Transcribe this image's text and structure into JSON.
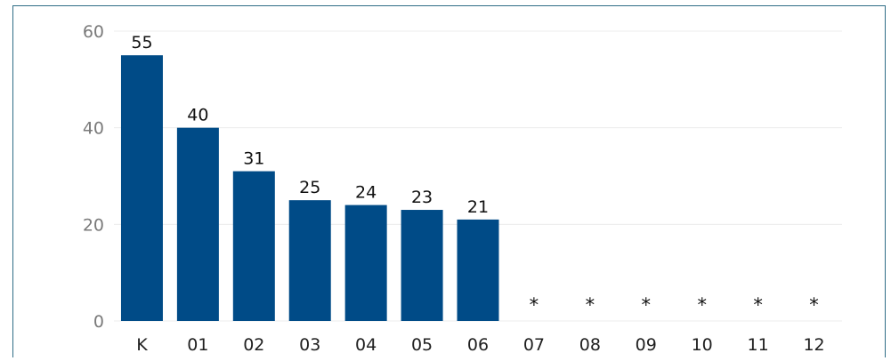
{
  "chart_data": {
    "type": "bar",
    "categories": [
      "K",
      "01",
      "02",
      "03",
      "04",
      "05",
      "06",
      "07",
      "08",
      "09",
      "10",
      "11",
      "12"
    ],
    "values": [
      55,
      40,
      31,
      25,
      24,
      23,
      21,
      null,
      null,
      null,
      null,
      null,
      null
    ],
    "data_labels": [
      "55",
      "40",
      "31",
      "25",
      "24",
      "23",
      "21",
      "*",
      "*",
      "*",
      "*",
      "*",
      "*"
    ],
    "y_ticks": [
      "0",
      "20",
      "40",
      "60"
    ],
    "ylim": [
      0,
      60
    ],
    "grid": true,
    "bar_color": "#004b87",
    "grid_color": "#ececec",
    "frame_color": "#2f6d86"
  }
}
